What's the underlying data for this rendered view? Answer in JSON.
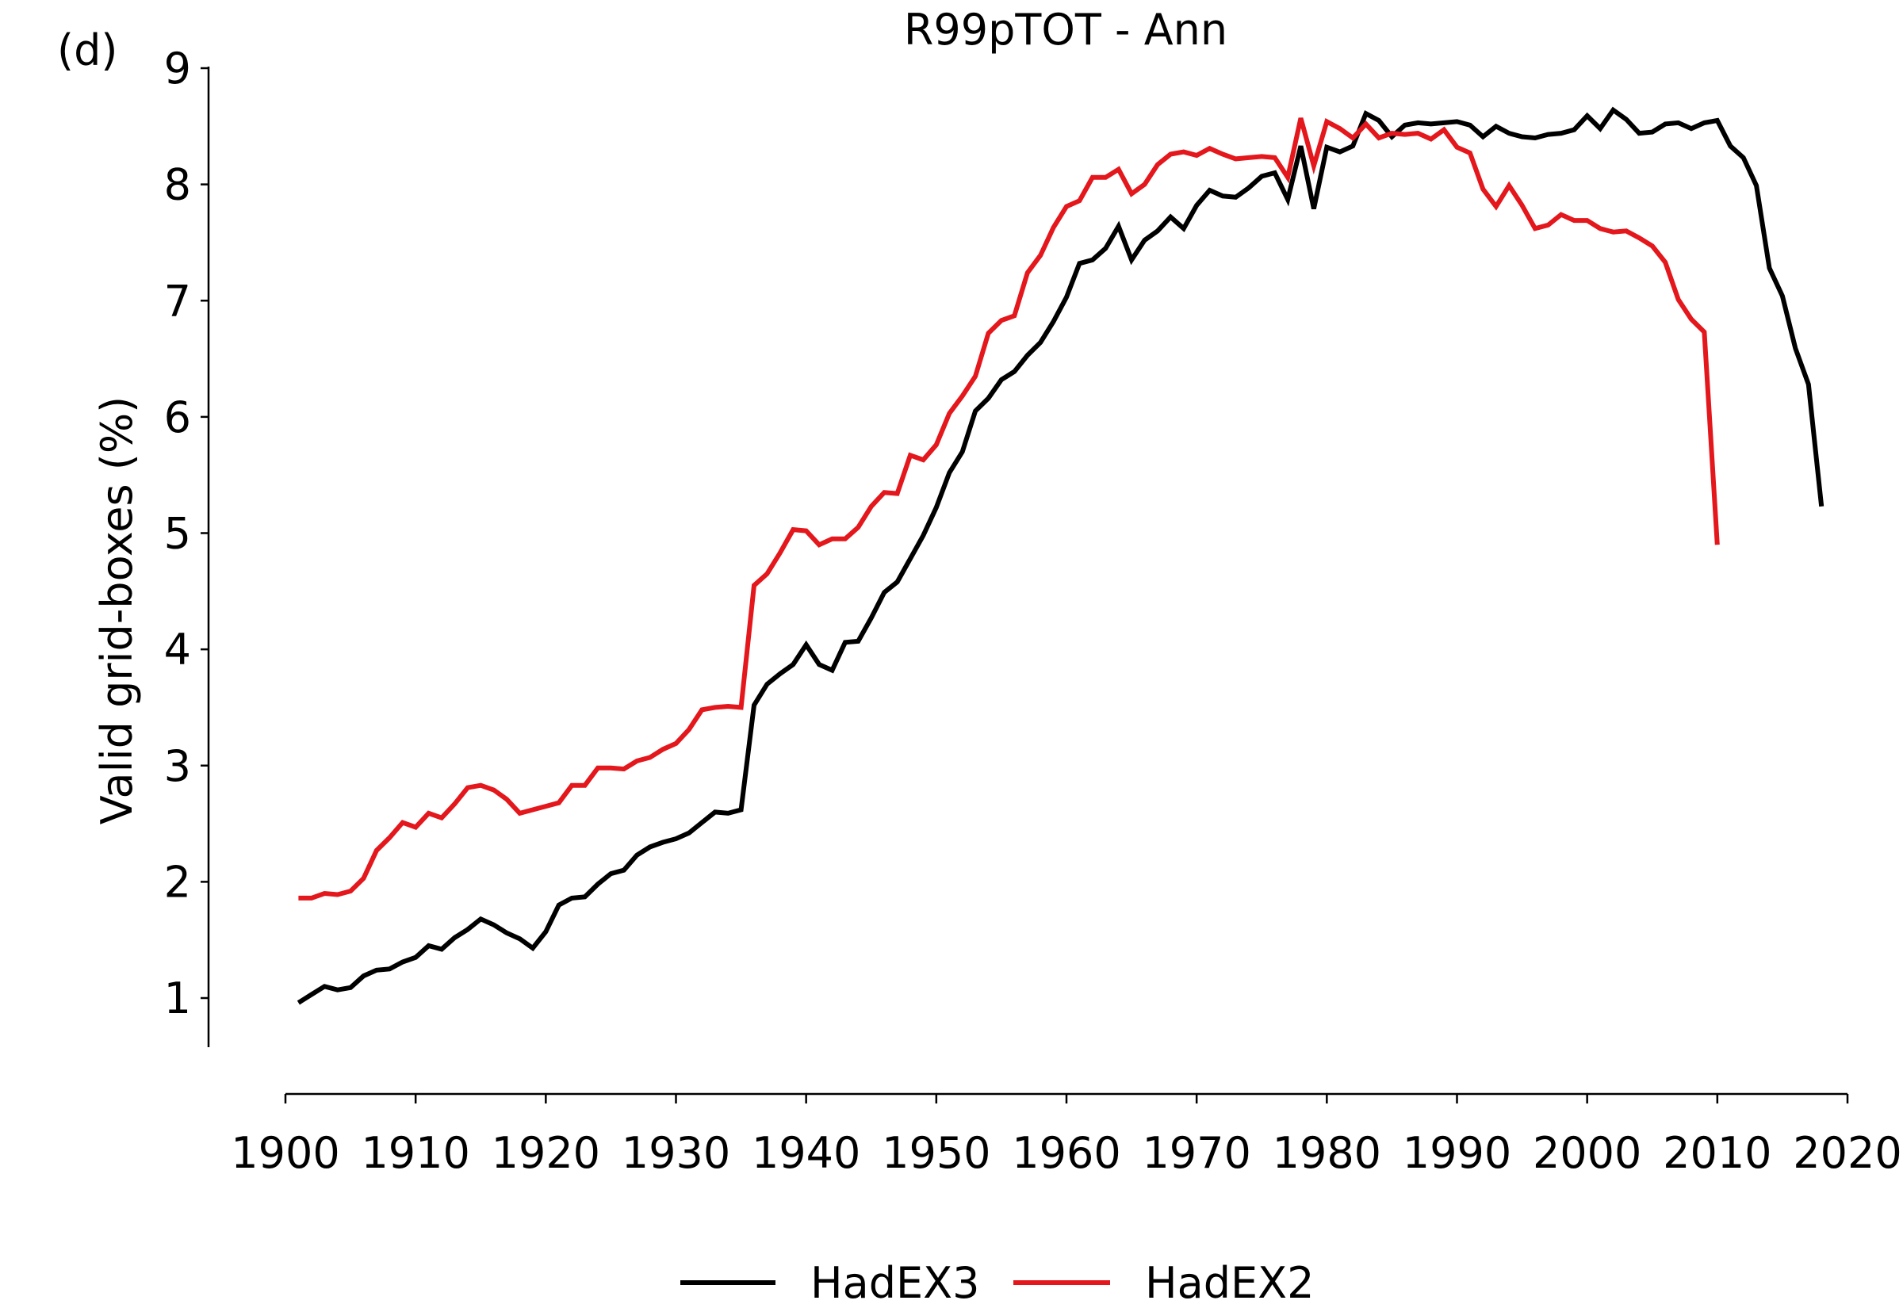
{
  "chart_data": {
    "type": "line",
    "panel_label": "(d)",
    "title": "R99pTOT - Ann",
    "xlabel": "",
    "ylabel": "Valid grid-boxes (%)",
    "xlim": [
      1900,
      2020
    ],
    "ylim": [
      0.6,
      9
    ],
    "xticks": [
      1900,
      1910,
      1920,
      1930,
      1940,
      1950,
      1960,
      1970,
      1980,
      1990,
      2000,
      2010,
      2020
    ],
    "yticks": [
      1,
      2,
      3,
      4,
      5,
      6,
      7,
      8,
      9
    ],
    "grid": false,
    "legend_position": "bottom-center",
    "series": [
      {
        "name": "HadEX3",
        "color": "#000000",
        "x_start": 1901,
        "values": [
          0.96,
          1.03,
          1.1,
          1.07,
          1.09,
          1.19,
          1.24,
          1.25,
          1.31,
          1.35,
          1.45,
          1.42,
          1.52,
          1.59,
          1.68,
          1.63,
          1.56,
          1.51,
          1.43,
          1.57,
          1.8,
          1.86,
          1.87,
          1.98,
          2.07,
          2.1,
          2.23,
          2.3,
          2.34,
          2.37,
          2.42,
          2.51,
          2.6,
          2.59,
          2.62,
          3.52,
          3.7,
          3.79,
          3.87,
          4.04,
          3.87,
          3.82,
          4.06,
          4.07,
          4.27,
          4.49,
          4.58,
          4.78,
          4.98,
          5.22,
          5.52,
          5.7,
          6.05,
          6.16,
          6.32,
          6.39,
          6.53,
          6.64,
          6.82,
          7.03,
          7.32,
          7.35,
          7.45,
          7.64,
          7.35,
          7.52,
          7.6,
          7.72,
          7.62,
          7.82,
          7.95,
          7.9,
          7.89,
          7.97,
          8.07,
          8.1,
          7.87,
          8.33,
          7.79,
          8.32,
          8.28,
          8.33,
          8.61,
          8.55,
          8.41,
          8.51,
          8.53,
          8.52,
          8.53,
          8.54,
          8.51,
          8.41,
          8.5,
          8.44,
          8.41,
          8.4,
          8.43,
          8.44,
          8.47,
          8.59,
          8.48,
          8.64,
          8.56,
          8.44,
          8.45,
          8.52,
          8.53,
          8.48,
          8.53,
          8.55,
          8.33,
          8.23,
          7.99,
          7.28,
          7.04,
          6.59,
          6.28,
          5.23
        ]
      },
      {
        "name": "HadEX2",
        "color": "#e3171c",
        "x_start": 1901,
        "values": [
          1.86,
          1.86,
          1.9,
          1.89,
          1.92,
          2.03,
          2.27,
          2.38,
          2.51,
          2.47,
          2.59,
          2.55,
          2.67,
          2.81,
          2.83,
          2.79,
          2.71,
          2.59,
          2.62,
          2.65,
          2.68,
          2.83,
          2.83,
          2.98,
          2.98,
          2.97,
          3.04,
          3.07,
          3.14,
          3.19,
          3.31,
          3.48,
          3.5,
          3.51,
          3.5,
          4.55,
          4.65,
          4.83,
          5.03,
          5.02,
          4.9,
          4.95,
          4.95,
          5.05,
          5.23,
          5.35,
          5.34,
          5.67,
          5.63,
          5.76,
          6.03,
          6.18,
          6.35,
          6.72,
          6.83,
          6.87,
          7.24,
          7.39,
          7.63,
          7.81,
          7.86,
          8.06,
          8.06,
          8.13,
          7.92,
          8.0,
          8.17,
          8.26,
          8.28,
          8.25,
          8.31,
          8.26,
          8.22,
          8.23,
          8.24,
          8.23,
          8.06,
          8.57,
          8.16,
          8.54,
          8.48,
          8.4,
          8.52,
          8.4,
          8.44,
          8.43,
          8.44,
          8.39,
          8.47,
          8.32,
          8.27,
          7.96,
          7.81,
          7.99,
          7.82,
          7.62,
          7.65,
          7.74,
          7.69,
          7.69,
          7.62,
          7.59,
          7.6,
          7.54,
          7.47,
          7.33,
          7.01,
          6.84,
          6.73,
          4.9
        ]
      }
    ]
  }
}
